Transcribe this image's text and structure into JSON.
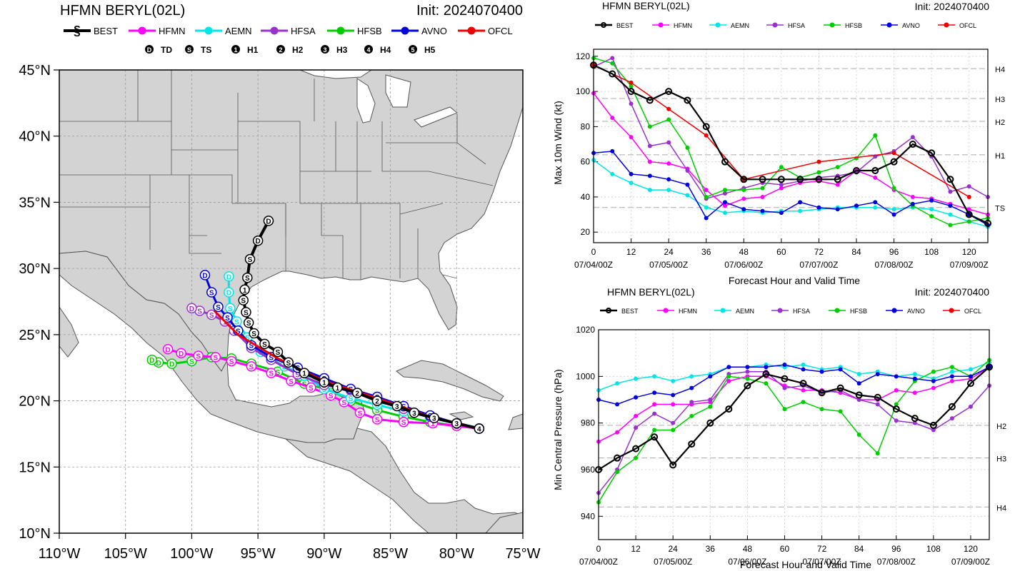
{
  "colors": {
    "BEST": "#000000",
    "HFMN": "#ff00ff",
    "AEMN": "#00e5e5",
    "HFSA": "#9932cc",
    "HFSB": "#00cc00",
    "AVNO": "#0000dd",
    "OFCL": "#ee0000",
    "land": "#d3d3d3",
    "border": "#555555",
    "grid": "#aaaaaa"
  },
  "map": {
    "title": "HFMN BERYL(02L)",
    "init": "Init: 2024070400",
    "legend": [
      "BEST",
      "HFMN",
      "AEMN",
      "HFSA",
      "HFSB",
      "AVNO",
      "OFCL"
    ],
    "intensity_legend": [
      {
        "sym": "D",
        "label": "TD"
      },
      {
        "sym": "S",
        "label": "TS"
      },
      {
        "sym": "1",
        "label": "H1"
      },
      {
        "sym": "2",
        "label": "H2"
      },
      {
        "sym": "3",
        "label": "H3"
      },
      {
        "sym": "4",
        "label": "H4"
      },
      {
        "sym": "5",
        "label": "H5"
      }
    ],
    "lon_ticks": [
      {
        "v": -110,
        "label": "110°W"
      },
      {
        "v": -105,
        "label": "105°W"
      },
      {
        "v": -100,
        "label": "100°W"
      },
      {
        "v": -95,
        "label": "95°W"
      },
      {
        "v": -90,
        "label": "90°W"
      },
      {
        "v": -85,
        "label": "85°W"
      },
      {
        "v": -80,
        "label": "80°W"
      },
      {
        "v": -75,
        "label": "75°W"
      }
    ],
    "lat_ticks": [
      {
        "v": 10,
        "label": "10°N"
      },
      {
        "v": 15,
        "label": "15°N"
      },
      {
        "v": 20,
        "label": "20°N"
      },
      {
        "v": 25,
        "label": "25°N"
      },
      {
        "v": 30,
        "label": "30°N"
      },
      {
        "v": 35,
        "label": "35°N"
      },
      {
        "v": 40,
        "label": "40°N"
      },
      {
        "v": 45,
        "label": "45°N"
      }
    ],
    "lon_range": [
      -110,
      -75
    ],
    "lat_range": [
      10,
      45
    ]
  },
  "chart_data": [
    {
      "type": "line",
      "title": "HFMN BERYL(02L)",
      "init": "Init: 2024070400",
      "xlabel": "Forecast Hour and Valid Time",
      "ylabel": "Max 10m Wind (kt)",
      "xlim": [
        0,
        126
      ],
      "ylim": [
        14,
        124
      ],
      "x_ticks": [
        0,
        12,
        24,
        36,
        48,
        60,
        72,
        84,
        96,
        108,
        120
      ],
      "y_ticks": [
        20,
        40,
        60,
        80,
        100,
        120
      ],
      "date_labels": [
        {
          "x": 0,
          "label": "07/04/00Z"
        },
        {
          "x": 24,
          "label": "07/05/00Z"
        },
        {
          "x": 48,
          "label": "07/06/00Z"
        },
        {
          "x": 72,
          "label": "07/07/00Z"
        },
        {
          "x": 96,
          "label": "07/08/00Z"
        },
        {
          "x": 120,
          "label": "07/09/00Z"
        }
      ],
      "ref_lines": [
        {
          "v": 34,
          "label": "TS"
        },
        {
          "v": 64,
          "label": "H1"
        },
        {
          "v": 83,
          "label": "H2"
        },
        {
          "v": 96,
          "label": "H3"
        },
        {
          "v": 113,
          "label": "H4"
        }
      ],
      "series": [
        {
          "name": "BEST",
          "x": [
            0,
            6,
            12,
            18,
            24,
            30,
            36,
            42,
            48,
            54,
            60,
            66,
            72,
            78,
            84,
            90,
            96,
            102,
            108,
            114,
            120,
            126
          ],
          "y": [
            115,
            110,
            100,
            95,
            100,
            95,
            80,
            60,
            50,
            50,
            50,
            50,
            50,
            50,
            55,
            55,
            60,
            70,
            65,
            50,
            30,
            25
          ]
        },
        {
          "name": "HFMN",
          "x": [
            0,
            6,
            12,
            18,
            24,
            30,
            36,
            42,
            48,
            54,
            60,
            66,
            72,
            78,
            84,
            90,
            96,
            102,
            108,
            114,
            120,
            126
          ],
          "y": [
            99,
            85,
            74,
            60,
            59,
            56,
            44,
            35,
            39,
            40,
            45,
            48,
            49,
            47,
            55,
            51,
            44,
            40,
            39,
            36,
            33,
            30
          ]
        },
        {
          "name": "AEMN",
          "x": [
            0,
            6,
            12,
            18,
            24,
            30,
            36,
            42,
            48,
            54,
            60,
            66,
            72,
            78,
            84,
            90,
            96,
            102,
            108,
            114,
            120,
            126
          ],
          "y": [
            61,
            53,
            48,
            44,
            44,
            41,
            34,
            31,
            32,
            31,
            32,
            32,
            33,
            34,
            34,
            34,
            33,
            34,
            33,
            30,
            26,
            23
          ]
        },
        {
          "name": "HFSA",
          "x": [
            0,
            6,
            12,
            18,
            24,
            30,
            36,
            42,
            48,
            54,
            60,
            66,
            72,
            78,
            84,
            90,
            96,
            102,
            108,
            114,
            120,
            126
          ],
          "y": [
            114,
            119,
            93,
            69,
            71,
            55,
            39,
            42,
            45,
            48,
            47,
            49,
            51,
            52,
            54,
            63,
            66,
            74,
            63,
            43,
            46,
            40
          ]
        },
        {
          "name": "HFSB",
          "x": [
            0,
            6,
            12,
            18,
            24,
            30,
            36,
            42,
            48,
            54,
            60,
            66,
            72,
            78,
            84,
            90,
            96,
            102,
            108,
            114,
            120,
            126
          ],
          "y": [
            119,
            116,
            103,
            80,
            84,
            68,
            40,
            44,
            44,
            45,
            57,
            51,
            54,
            57,
            62,
            75,
            45,
            35,
            29,
            24,
            26,
            28
          ]
        },
        {
          "name": "AVNO",
          "x": [
            0,
            6,
            12,
            18,
            24,
            30,
            36,
            42,
            48,
            54,
            60,
            66,
            72,
            78,
            84,
            90,
            96,
            102,
            108,
            114,
            120,
            126
          ],
          "y": [
            65,
            66,
            53,
            52,
            50,
            47,
            28,
            37,
            33,
            32,
            31,
            37,
            34,
            33,
            35,
            37,
            30,
            36,
            38,
            35,
            30,
            24
          ]
        },
        {
          "name": "OFCL",
          "x": [
            0,
            12,
            24,
            36,
            48,
            72,
            96,
            120
          ],
          "y": [
            115,
            105,
            90,
            75,
            50,
            60,
            65,
            40
          ]
        }
      ]
    },
    {
      "type": "line",
      "title": "HFMN BERYL(02L)",
      "init": "Init: 2024070400",
      "xlabel": "Forecast Hour and Valid Time",
      "ylabel": "Min Central Pressure (hPa)",
      "xlim": [
        0,
        126
      ],
      "ylim": [
        930,
        1020
      ],
      "x_ticks": [
        0,
        12,
        24,
        36,
        48,
        60,
        72,
        84,
        96,
        108,
        120
      ],
      "y_ticks": [
        940,
        960,
        980,
        1000,
        1020
      ],
      "date_labels": [
        {
          "x": 0,
          "label": "07/04/00Z"
        },
        {
          "x": 24,
          "label": "07/05/00Z"
        },
        {
          "x": 48,
          "label": "07/06/00Z"
        },
        {
          "x": 72,
          "label": "07/07/00Z"
        },
        {
          "x": 96,
          "label": "07/08/00Z"
        },
        {
          "x": 120,
          "label": "07/09/00Z"
        }
      ],
      "ref_lines": [
        {
          "v": 979,
          "label": "H2"
        },
        {
          "v": 965,
          "label": "H3"
        },
        {
          "v": 944,
          "label": "H4"
        }
      ],
      "series": [
        {
          "name": "BEST",
          "x": [
            0,
            6,
            12,
            18,
            24,
            30,
            36,
            42,
            48,
            54,
            60,
            66,
            72,
            78,
            84,
            90,
            96,
            102,
            108,
            114,
            120,
            126
          ],
          "y": [
            960,
            965,
            969,
            974,
            962,
            971,
            980,
            986,
            996,
            1001,
            999,
            997,
            993,
            995,
            992,
            991,
            986,
            982,
            979,
            987,
            997,
            1004
          ]
        },
        {
          "name": "HFMN",
          "x": [
            0,
            6,
            12,
            18,
            24,
            30,
            36,
            42,
            48,
            54,
            60,
            66,
            72,
            78,
            84,
            90,
            96,
            102,
            108,
            114,
            120,
            126
          ],
          "y": [
            972,
            976,
            983,
            988,
            988,
            988,
            989,
            998,
            1000,
            1000,
            996,
            994,
            994,
            993,
            990,
            990,
            994,
            993,
            995,
            998,
            999,
            1004
          ]
        },
        {
          "name": "AEMN",
          "x": [
            0,
            6,
            12,
            18,
            24,
            30,
            36,
            42,
            48,
            54,
            60,
            66,
            72,
            78,
            84,
            90,
            96,
            102,
            108,
            114,
            120,
            126
          ],
          "y": [
            994,
            997,
            999,
            1000,
            998,
            1000,
            1001,
            1004,
            1004,
            1005,
            1004,
            1005,
            1003,
            1004,
            1001,
            1002,
            1000,
            1001,
            999,
            1002,
            1003,
            1006
          ]
        },
        {
          "name": "HFSA",
          "x": [
            0,
            6,
            12,
            18,
            24,
            30,
            36,
            42,
            48,
            54,
            60,
            66,
            72,
            78,
            84,
            90,
            96,
            102,
            108,
            114,
            120,
            126
          ],
          "y": [
            950,
            960,
            978,
            984,
            980,
            989,
            990,
            1001,
            1002,
            1002,
            995,
            996,
            993,
            994,
            990,
            988,
            981,
            980,
            977,
            982,
            987,
            996
          ]
        },
        {
          "name": "HFSB",
          "x": [
            0,
            6,
            12,
            18,
            24,
            30,
            36,
            42,
            48,
            54,
            60,
            66,
            72,
            78,
            84,
            90,
            96,
            102,
            108,
            114,
            120,
            126
          ],
          "y": [
            946,
            959,
            965,
            977,
            977,
            983,
            987,
            1000,
            999,
            997,
            986,
            989,
            986,
            985,
            975,
            967,
            988,
            998,
            1002,
            1004,
            1000,
            1007
          ]
        },
        {
          "name": "AVNO",
          "x": [
            0,
            6,
            12,
            18,
            24,
            30,
            36,
            42,
            48,
            54,
            60,
            66,
            72,
            78,
            84,
            90,
            96,
            102,
            108,
            114,
            120,
            126
          ],
          "y": [
            990,
            988,
            991,
            993,
            992,
            995,
            1000,
            1004,
            1004,
            1004,
            1005,
            1003,
            1002,
            1003,
            997,
            1001,
            1000,
            999,
            998,
            1000,
            1000,
            1004
          ]
        },
        {
          "name": "OFCL",
          "x": [],
          "y": []
        }
      ]
    }
  ]
}
